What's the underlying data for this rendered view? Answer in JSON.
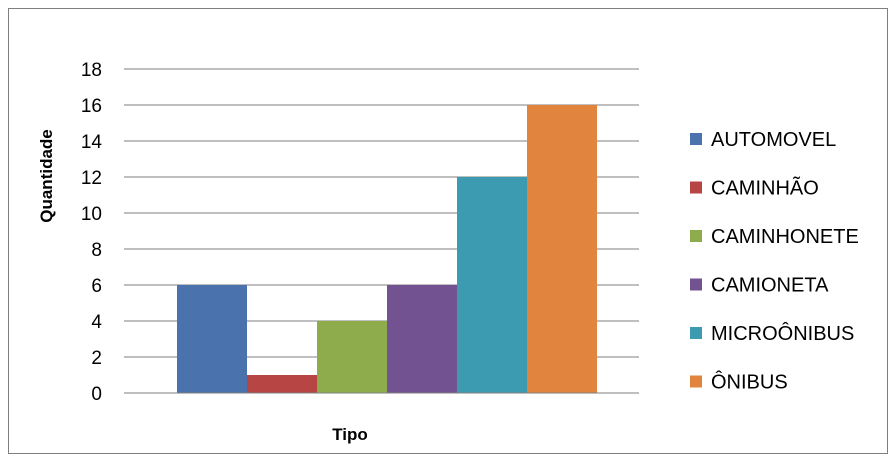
{
  "chart_data": {
    "type": "bar",
    "title": "",
    "xlabel": "Tipo",
    "ylabel": "Quantidade",
    "ylim": [
      0,
      18
    ],
    "yticks": [
      0,
      2,
      4,
      6,
      8,
      10,
      12,
      14,
      16,
      18
    ],
    "grid": true,
    "legend_position": "right",
    "series": [
      {
        "name": "AUTOMOVEL",
        "value": 6,
        "color": "#4a73ae"
      },
      {
        "name": "CAMINHÃO",
        "value": 1,
        "color": "#b64544"
      },
      {
        "name": "CAMINHONETE",
        "value": 4,
        "color": "#8eac4c"
      },
      {
        "name": "CAMIONETA",
        "value": 6,
        "color": "#735291"
      },
      {
        "name": "MICROÔNIBUS",
        "value": 12,
        "color": "#3c9ab1"
      },
      {
        "name": "ÔNIBUS",
        "value": 16,
        "color": "#e1843e"
      }
    ]
  }
}
